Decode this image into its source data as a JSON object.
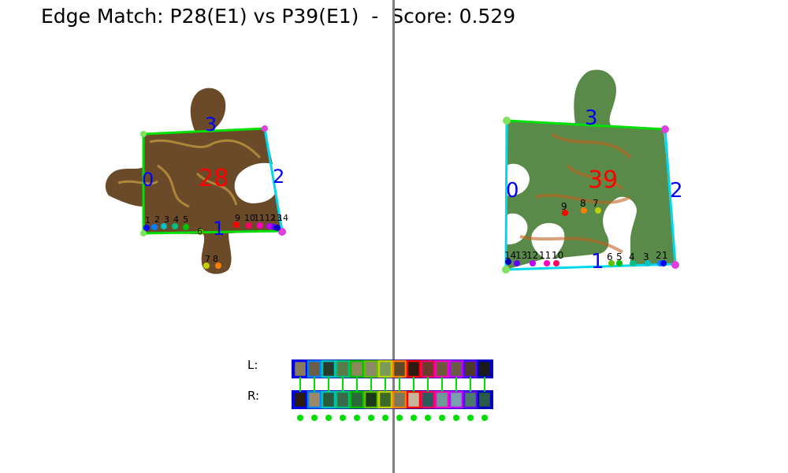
{
  "title": "Edge Match: P28(E1) vs P39(E1)  -  Score: 0.529",
  "left_piece": {
    "id": "28",
    "edge_labels": [
      "0",
      "1",
      "2",
      "3"
    ],
    "point_labels": [
      "1",
      "2",
      "3",
      "4",
      "5",
      "6",
      "7",
      "8",
      "9",
      "10",
      "11",
      "12",
      "13",
      "14"
    ]
  },
  "right_piece": {
    "id": "39",
    "edge_labels": [
      "0",
      "1",
      "2",
      "3"
    ],
    "point_labels": [
      "14",
      "13",
      "12",
      "11",
      "10",
      "9",
      "8",
      "7",
      "6",
      "5",
      "4",
      "3",
      "2",
      "1"
    ]
  },
  "strip": {
    "left_label": "L:",
    "right_label": "R:",
    "left_colors": [
      "#8a7a5c",
      "#6b5e48",
      "#2a3a2a",
      "#5a7a4a",
      "#8a8a5a",
      "#8a8a6a",
      "#7a9a5a",
      "#5a4a2a",
      "#2a1a10",
      "#6a3a2a",
      "#6a5a3a",
      "#6a5a4a",
      "#4a3a2a",
      "#1a1a1a"
    ],
    "right_colors": [
      "#2a1a10",
      "#9a8a6a",
      "#2a5a3a",
      "#3a6a4a",
      "#2a6a3a",
      "#1a3a1a",
      "#3a6a2a",
      "#7a7a5a",
      "#c8b49a",
      "#2a5a5a",
      "#6a9a9a",
      "#7aa0b0",
      "#4a7a6a",
      "#2a5a4a"
    ],
    "border_colors": [
      "#0000ff",
      "#0080ff",
      "#00c0c0",
      "#00c080",
      "#00c000",
      "#60c000",
      "#c0d000",
      "#ff8000",
      "#ff0000",
      "#ff0060",
      "#ff00c0",
      "#c000ff",
      "#6000ff",
      "#0000c0"
    ],
    "match_color": "#00e000"
  }
}
